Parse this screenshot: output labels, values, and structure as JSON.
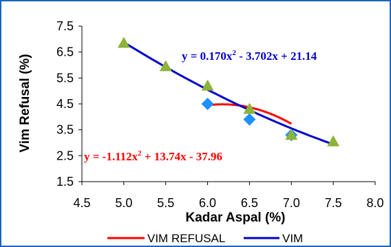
{
  "chart_data": {
    "type": "scatter",
    "xlabel": "Kadar Aspal (%)",
    "ylabel": "Vim Refusal (%)",
    "xlim": [
      4.5,
      8.0
    ],
    "ylim": [
      1.5,
      7.5
    ],
    "x_ticks": [
      "4.5",
      "5.0",
      "5.5",
      "6.0",
      "6.5",
      "7.0",
      "7.5",
      "8.0"
    ],
    "y_ticks": [
      "1.5",
      "2.5",
      "3.5",
      "4.5",
      "5.5",
      "6.5",
      "7.5"
    ],
    "grid": false,
    "legend_position": "bottom",
    "series": [
      {
        "name": "VIM REFUSAL",
        "color": "#ff0000",
        "marker": "diamond",
        "marker_color": "#1e90ff",
        "points": [
          {
            "x": 6.0,
            "y": 4.5
          },
          {
            "x": 6.5,
            "y": 3.9
          },
          {
            "x": 7.0,
            "y": 3.3
          }
        ],
        "trendline": {
          "coeffs": [
            -1.112,
            13.74,
            -37.96
          ],
          "x_range": [
            6.0,
            7.0
          ]
        },
        "equation_parts": [
          "y = -1.112x",
          "2",
          " + 13.74x - 37.96"
        ]
      },
      {
        "name": "VIM",
        "color": "#0000cc",
        "marker": "triangle",
        "marker_color": "#8db33a",
        "points": [
          {
            "x": 5.0,
            "y": 6.85
          },
          {
            "x": 5.5,
            "y": 5.95
          },
          {
            "x": 6.0,
            "y": 5.2
          },
          {
            "x": 6.5,
            "y": 4.3
          },
          {
            "x": 7.0,
            "y": 3.3
          },
          {
            "x": 7.5,
            "y": 3.05
          }
        ],
        "trendline": {
          "coeffs": [
            0.17,
            -3.702,
            21.14
          ],
          "x_range": [
            5.0,
            7.5
          ]
        },
        "equation_parts": [
          "y = 0.170x",
          "2",
          " - 3.702x + 21.14"
        ]
      }
    ]
  }
}
